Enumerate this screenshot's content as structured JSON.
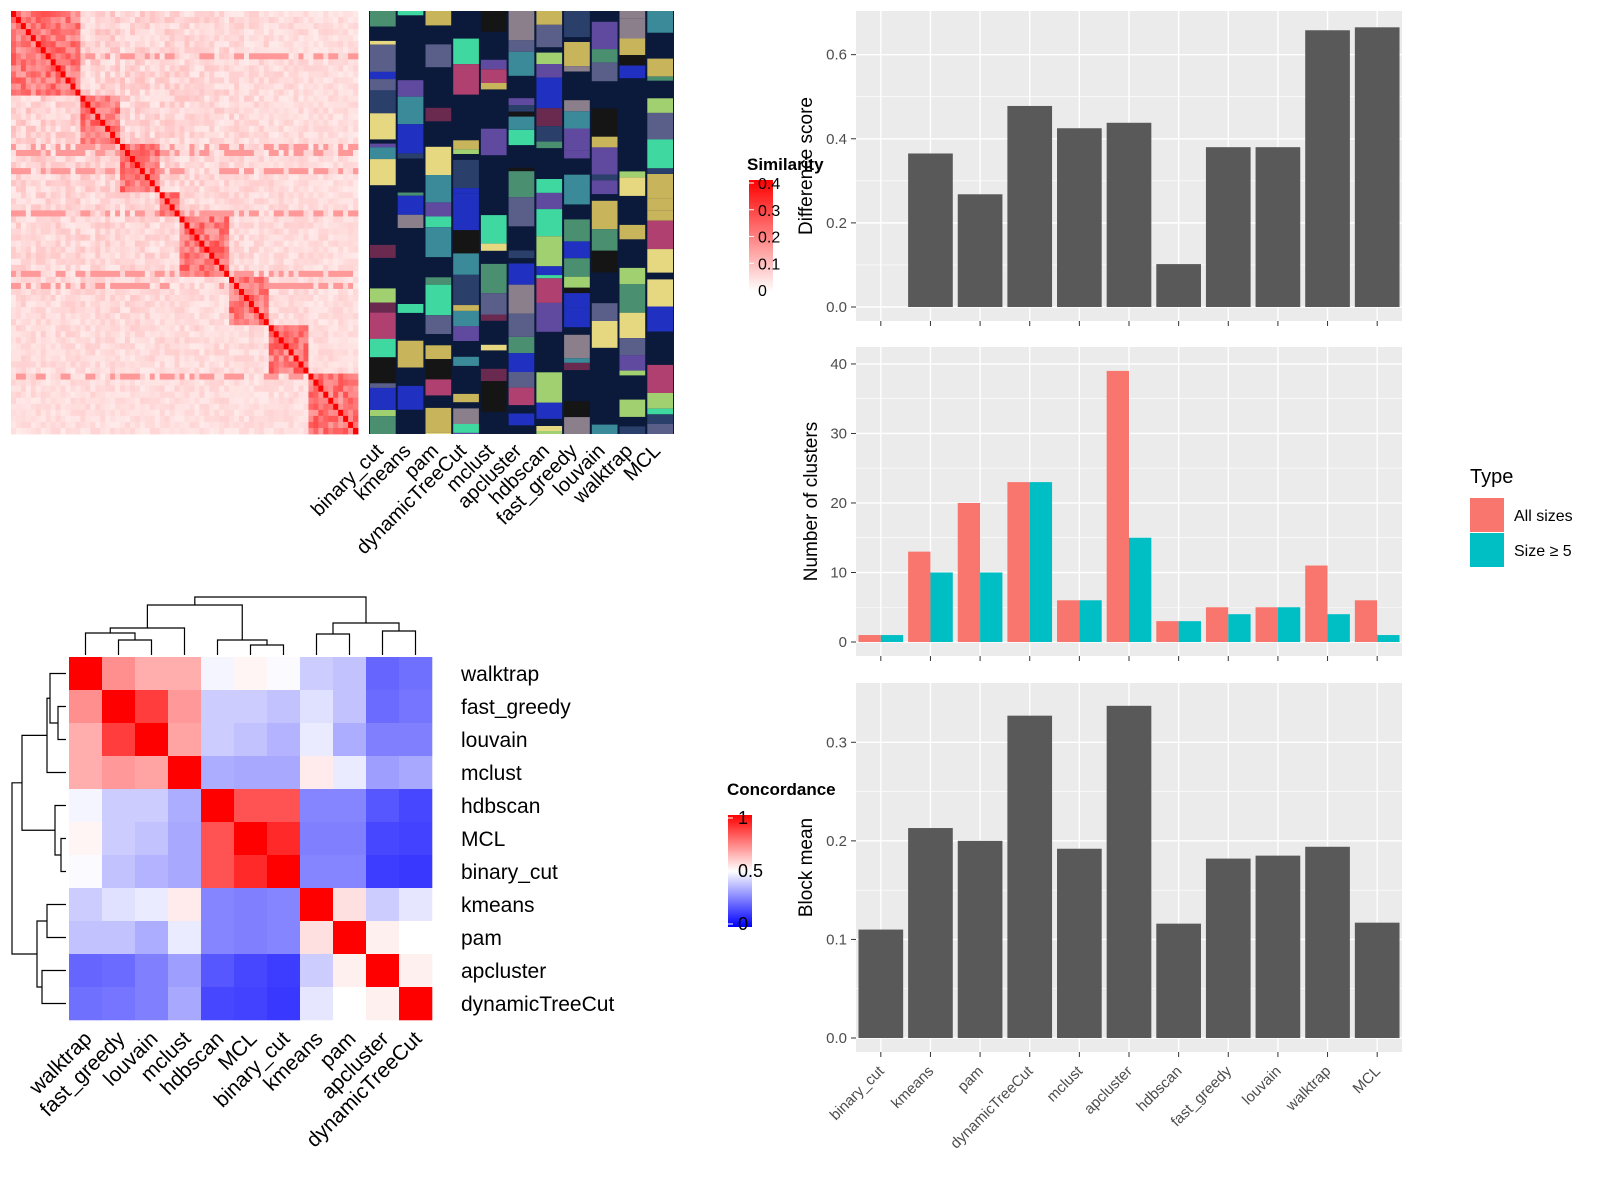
{
  "methods_short": [
    "binary_cut",
    "kmeans",
    "pam",
    "dynamicTreeCut",
    "mclust",
    "apcluster",
    "hdbscan",
    "fast_greedy",
    "louvain",
    "walktrap",
    "MCL"
  ],
  "colors": {
    "heat_high": "#ff0000",
    "heat_low": "#ffffff",
    "conc_high": "#ff0000",
    "conc_mid": "#ffffff",
    "conc_low": "#0000ff",
    "bar": "#595959",
    "all_sizes": "#f8766d",
    "size_ge5": "#00bfc4",
    "panel_bg": "#ebebeb",
    "annotation_bg": "#0b1a3a"
  },
  "similarity_legend": {
    "title": "Similarity",
    "ticks": [
      "0.4",
      "0.3",
      "0.2",
      "0.1",
      "0"
    ]
  },
  "concordance_legend": {
    "title": "Concordance",
    "ticks": [
      "1",
      "0.5",
      "0"
    ]
  },
  "concordance_order": [
    "walktrap",
    "fast_greedy",
    "louvain",
    "mclust",
    "hdbscan",
    "MCL",
    "binary_cut",
    "kmeans",
    "pam",
    "apcluster",
    "dynamicTreeCut"
  ],
  "chart_data": [
    {
      "type": "heatmap",
      "name": "similarity-matrix-with-cluster-annotations",
      "columns": [
        "binary_cut",
        "kmeans",
        "pam",
        "dynamicTreeCut",
        "mclust",
        "apcluster",
        "hdbscan",
        "fast_greedy",
        "louvain",
        "walktrap",
        "MCL"
      ],
      "legend_title": "Similarity",
      "range": [
        0,
        0.4
      ]
    },
    {
      "type": "heatmap",
      "name": "method-concordance",
      "rows": [
        "walktrap",
        "fast_greedy",
        "louvain",
        "mclust",
        "hdbscan",
        "MCL",
        "binary_cut",
        "kmeans",
        "pam",
        "apcluster",
        "dynamicTreeCut"
      ],
      "columns": [
        "walktrap",
        "fast_greedy",
        "louvain",
        "mclust",
        "hdbscan",
        "MCL",
        "binary_cut",
        "kmeans",
        "pam",
        "apcluster",
        "dynamicTreeCut"
      ],
      "legend_title": "Concordance",
      "range": [
        0,
        1
      ],
      "values": [
        [
          1.0,
          0.72,
          0.66,
          0.66,
          0.48,
          0.52,
          0.49,
          0.4,
          0.38,
          0.2,
          0.22
        ],
        [
          0.72,
          1.0,
          0.88,
          0.7,
          0.4,
          0.4,
          0.38,
          0.44,
          0.38,
          0.21,
          0.23
        ],
        [
          0.66,
          0.88,
          1.0,
          0.68,
          0.4,
          0.38,
          0.35,
          0.46,
          0.34,
          0.25,
          0.25
        ],
        [
          0.66,
          0.7,
          0.68,
          1.0,
          0.34,
          0.33,
          0.33,
          0.54,
          0.46,
          0.31,
          0.33
        ],
        [
          0.48,
          0.4,
          0.4,
          0.34,
          1.0,
          0.84,
          0.84,
          0.26,
          0.26,
          0.17,
          0.14
        ],
        [
          0.52,
          0.4,
          0.38,
          0.33,
          0.84,
          1.0,
          0.92,
          0.25,
          0.25,
          0.14,
          0.13
        ],
        [
          0.49,
          0.38,
          0.35,
          0.33,
          0.84,
          0.92,
          1.0,
          0.26,
          0.26,
          0.12,
          0.11
        ],
        [
          0.4,
          0.44,
          0.46,
          0.54,
          0.26,
          0.25,
          0.26,
          1.0,
          0.56,
          0.4,
          0.45
        ],
        [
          0.38,
          0.38,
          0.34,
          0.46,
          0.26,
          0.25,
          0.26,
          0.56,
          1.0,
          0.53,
          0.5
        ],
        [
          0.2,
          0.21,
          0.25,
          0.31,
          0.17,
          0.14,
          0.12,
          0.4,
          0.53,
          1.0,
          0.53
        ],
        [
          0.22,
          0.23,
          0.25,
          0.33,
          0.14,
          0.13,
          0.11,
          0.45,
          0.5,
          0.53,
          1.0
        ]
      ]
    },
    {
      "type": "bar",
      "categories": [
        "binary_cut",
        "kmeans",
        "pam",
        "dynamicTreeCut",
        "mclust",
        "apcluster",
        "hdbscan",
        "fast_greedy",
        "louvain",
        "walktrap",
        "MCL"
      ],
      "values": [
        0,
        0.365,
        0.268,
        0.478,
        0.425,
        0.438,
        0.102,
        0.38,
        0.38,
        0.658,
        0.665
      ],
      "ylabel": "Difference score",
      "ylim": [
        0,
        0.68
      ],
      "yticks": [
        "0.0",
        "0.2",
        "0.4",
        "0.6"
      ],
      "grid": true
    },
    {
      "type": "bar",
      "categories": [
        "binary_cut",
        "kmeans",
        "pam",
        "dynamicTreeCut",
        "mclust",
        "apcluster",
        "hdbscan",
        "fast_greedy",
        "louvain",
        "walktrap",
        "MCL"
      ],
      "series": [
        {
          "name": "All sizes",
          "values": [
            1,
            13,
            20,
            23,
            6,
            39,
            3,
            5,
            5,
            11,
            6
          ]
        },
        {
          "name": "Size ≥ 5",
          "values": [
            1,
            10,
            10,
            23,
            6,
            15,
            3,
            4,
            5,
            4,
            1
          ]
        }
      ],
      "ylabel": "Number of clusters",
      "ylim": [
        0,
        41
      ],
      "yticks": [
        "0",
        "10",
        "20",
        "30",
        "40"
      ],
      "legend_title": "Type",
      "legend_position": "right",
      "grid": true
    },
    {
      "type": "bar",
      "categories": [
        "binary_cut",
        "kmeans",
        "pam",
        "dynamicTreeCut",
        "mclust",
        "apcluster",
        "hdbscan",
        "fast_greedy",
        "louvain",
        "walktrap",
        "MCL"
      ],
      "values": [
        0.11,
        0.213,
        0.2,
        0.327,
        0.192,
        0.337,
        0.116,
        0.182,
        0.185,
        0.194,
        0.117
      ],
      "ylabel": "Block mean",
      "ylim": [
        0,
        0.35
      ],
      "yticks": [
        "0.0",
        "0.1",
        "0.2",
        "0.3"
      ],
      "grid": true
    }
  ]
}
